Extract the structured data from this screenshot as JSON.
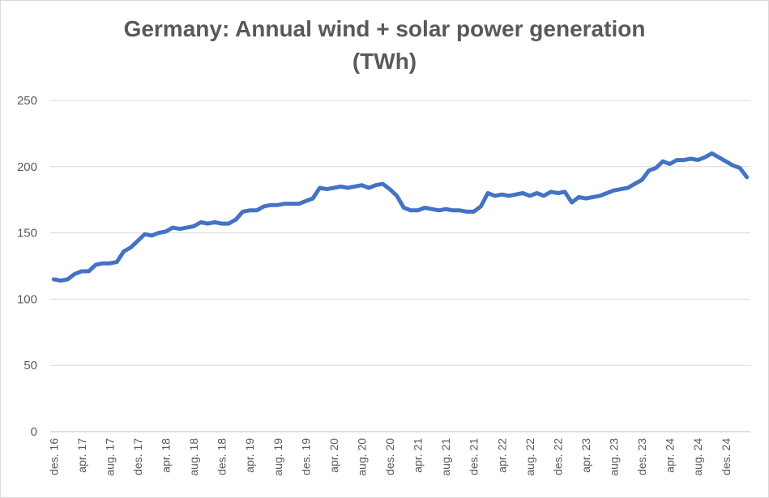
{
  "chart_data": {
    "type": "line",
    "title_line1": "Germany: Annual wind + solar power generation",
    "title_line2": "(TWh)",
    "xlabel": "",
    "ylabel": "",
    "ylim": [
      0,
      250
    ],
    "y_ticks": [
      "0",
      "50",
      "100",
      "150",
      "200",
      "250"
    ],
    "grid": true,
    "legend": "none",
    "x_tick_labels": [
      "des. 16",
      "apr. 17",
      "aug. 17",
      "des. 17",
      "apr. 18",
      "aug. 18",
      "des. 18",
      "apr. 19",
      "aug. 19",
      "des. 19",
      "apr. 20",
      "aug. 20",
      "des. 20",
      "apr. 21",
      "aug. 21",
      "des. 21",
      "apr. 22",
      "aug. 22",
      "des. 22",
      "apr. 23",
      "aug. 23",
      "des. 23",
      "apr. 24",
      "aug. 24",
      "des. 24"
    ],
    "series": [
      {
        "name": "Wind + solar",
        "color": "#4472C4",
        "values": [
          115,
          114,
          115,
          119,
          121,
          121,
          126,
          127,
          127,
          128,
          136,
          139,
          144,
          149,
          148,
          150,
          151,
          154,
          153,
          154,
          155,
          158,
          157,
          158,
          157,
          157,
          160,
          166,
          167,
          167,
          170,
          171,
          171,
          172,
          172,
          172,
          174,
          176,
          184,
          183,
          184,
          185,
          184,
          185,
          186,
          184,
          186,
          187,
          183,
          178,
          169,
          167,
          167,
          169,
          168,
          167,
          168,
          167,
          167,
          166,
          166,
          170,
          180,
          178,
          179,
          178,
          179,
          180,
          178,
          180,
          178,
          181,
          180,
          181,
          173,
          177,
          176,
          177,
          178,
          180,
          182,
          183,
          184,
          187,
          190,
          197,
          199,
          204,
          202,
          205,
          205,
          206,
          205,
          207,
          210,
          207,
          204,
          201,
          199,
          192
        ]
      }
    ]
  }
}
